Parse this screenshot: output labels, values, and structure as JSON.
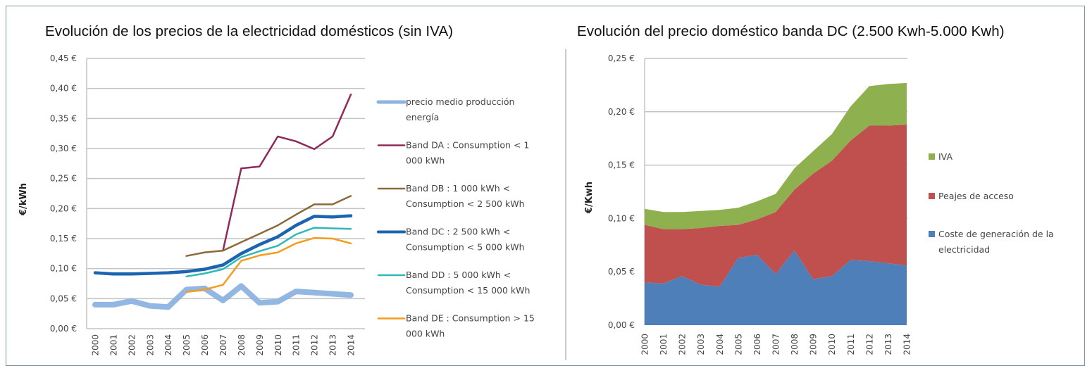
{
  "chart_data": [
    {
      "type": "line",
      "title": "Evolución de los precios de la electricidad domésticos (sin IVA)",
      "xlabel": "",
      "ylabel": "€/kWh",
      "x": [
        "2000",
        "2001",
        "2002",
        "2003",
        "2004",
        "2005",
        "2006",
        "2007",
        "2008",
        "2009",
        "2010",
        "2011",
        "2012",
        "2013",
        "2014"
      ],
      "ylim": [
        0,
        0.45
      ],
      "yticks": [
        "0,00 €",
        "0,05 €",
        "0,10 €",
        "0,15 €",
        "0,20 €",
        "0,25 €",
        "0,30 €",
        "0,35 €",
        "0,40 €",
        "0,45 €"
      ],
      "ytick_values": [
        0,
        0.05,
        0.1,
        0.15,
        0.2,
        0.25,
        0.3,
        0.35,
        0.4,
        0.45
      ],
      "grid": true,
      "legend_position": "right",
      "series": [
        {
          "name": "precio medio producción energía",
          "legend_lines": [
            "precio medio producción",
            "energía"
          ],
          "color": "#8db3e2",
          "width": "thick",
          "values": [
            0.04,
            0.04,
            0.046,
            0.038,
            0.036,
            0.065,
            0.067,
            0.047,
            0.071,
            0.043,
            0.045,
            0.062,
            0.06,
            0.058,
            0.056
          ]
        },
        {
          "name": "Band DA : Consumption < 1 000 kWh",
          "legend_lines": [
            "Band DA : Consumption < 1",
            "000 kWh"
          ],
          "color": "#8e2a5a",
          "width": "normal",
          "values": [
            null,
            null,
            null,
            null,
            null,
            null,
            null,
            0.13,
            0.267,
            0.27,
            0.32,
            0.312,
            0.299,
            0.32,
            0.39
          ]
        },
        {
          "name": "Band DB : 1 000 kWh < Consumption < 2 500 kWh",
          "legend_lines": [
            "Band DB : 1 000 kWh <",
            "Consumption < 2 500 kWh"
          ],
          "color": "#8b6a3a",
          "width": "normal",
          "values": [
            null,
            null,
            null,
            null,
            null,
            0.121,
            0.127,
            0.13,
            0.144,
            0.158,
            0.172,
            0.19,
            0.207,
            0.207,
            0.221
          ]
        },
        {
          "name": "Band DC : 2 500 kWh < Consumption < 5 000 kWh",
          "legend_lines": [
            "Band DC : 2 500 kWh <",
            "Consumption < 5 000 kWh"
          ],
          "color": "#1a64b0",
          "width": "bold",
          "values": [
            0.093,
            0.091,
            0.091,
            0.092,
            0.093,
            0.095,
            0.099,
            0.106,
            0.125,
            0.14,
            0.153,
            0.172,
            0.187,
            0.186,
            0.188
          ]
        },
        {
          "name": "Band DD : 5 000 kWh < Consumption < 15 000 kWh",
          "legend_lines": [
            "Band DD : 5 000 kWh <",
            "Consumption < 15 000 kWh"
          ],
          "color": "#2fb8b8",
          "width": "normal",
          "values": [
            null,
            null,
            null,
            null,
            null,
            0.087,
            0.092,
            0.099,
            0.119,
            0.129,
            0.138,
            0.157,
            0.168,
            0.167,
            0.166
          ]
        },
        {
          "name": "Band DE : Consumption > 15 000 kWh",
          "legend_lines": [
            "Band DE : Consumption > 15",
            "000 kWh"
          ],
          "color": "#f39c1e",
          "width": "normal",
          "values": [
            null,
            null,
            null,
            null,
            null,
            0.061,
            0.065,
            0.073,
            0.113,
            0.122,
            0.127,
            0.142,
            0.151,
            0.15,
            0.142
          ]
        }
      ]
    },
    {
      "type": "area",
      "stacked": true,
      "title": "Evolución del precio doméstico banda DC (2.500 Kwh-5.000 Kwh)",
      "xlabel": "",
      "ylabel": "€/Kwh",
      "x": [
        "2000",
        "2001",
        "2002",
        "2003",
        "2004",
        "2005",
        "2006",
        "2007",
        "2008",
        "2009",
        "2010",
        "2011",
        "2012",
        "2013",
        "2014"
      ],
      "ylim": [
        0,
        0.25
      ],
      "yticks": [
        "0,00 €",
        "0,05 €",
        "0,10 €",
        "0,15 €",
        "0,20 €",
        "0,25 €"
      ],
      "ytick_values": [
        0,
        0.05,
        0.1,
        0.15,
        0.2,
        0.25
      ],
      "grid": true,
      "legend_position": "right",
      "series": [
        {
          "name": "Coste de generación de la electricidad",
          "legend_lines": [
            "Coste de generación de la",
            "electricidad"
          ],
          "color": "#4f7fb8",
          "values": [
            0.04,
            0.039,
            0.046,
            0.038,
            0.036,
            0.063,
            0.066,
            0.048,
            0.07,
            0.043,
            0.046,
            0.061,
            0.06,
            0.058,
            0.056
          ]
        },
        {
          "name": "Peajes de acceso",
          "legend_lines": [
            "Peajes de acceso"
          ],
          "color": "#c0504d",
          "values": [
            0.054,
            0.051,
            0.044,
            0.053,
            0.057,
            0.031,
            0.033,
            0.058,
            0.057,
            0.099,
            0.108,
            0.112,
            0.127,
            0.129,
            0.132
          ]
        },
        {
          "name": "IVA",
          "legend_lines": [
            "IVA"
          ],
          "color": "#8fb04f",
          "values": [
            0.015,
            0.016,
            0.016,
            0.016,
            0.015,
            0.016,
            0.017,
            0.017,
            0.02,
            0.021,
            0.025,
            0.032,
            0.037,
            0.039,
            0.039
          ]
        }
      ],
      "legend_order": [
        "IVA",
        "Peajes de acceso",
        "Coste de generación de la electricidad"
      ]
    }
  ]
}
